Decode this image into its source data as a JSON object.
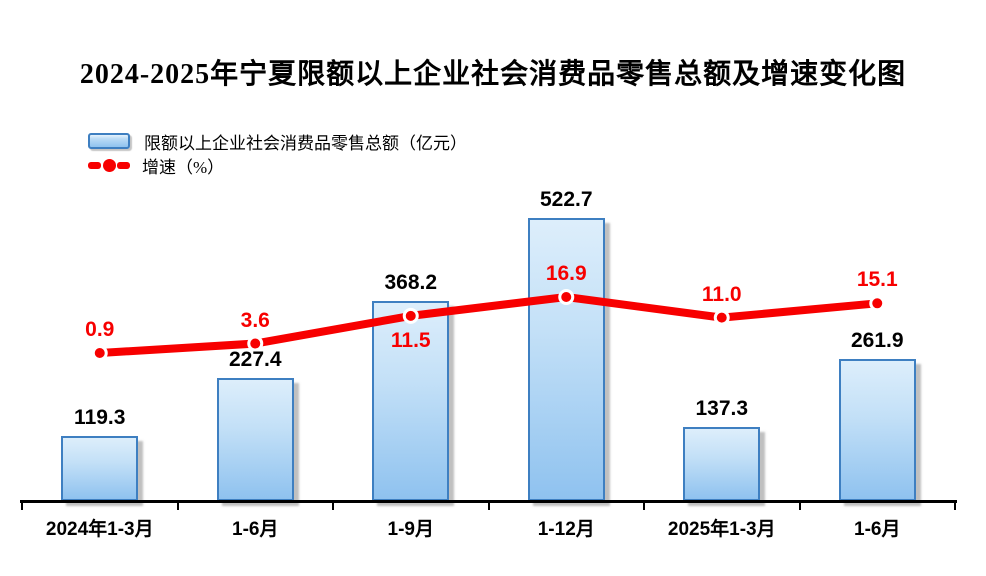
{
  "title": "2024-2025年宁夏限额以上企业社会消费品零售总额及增速变化图",
  "legend": {
    "bar_label": "限额以上企业社会消费品零售总额（亿元）",
    "line_label": "增速（%）"
  },
  "colors": {
    "bar_fill_top": "#ddeefb",
    "bar_fill_bottom": "#8fc2ef",
    "bar_border": "#3e7fc1",
    "line": "#f70000",
    "text": "#000000"
  },
  "chart_data": {
    "type": "bar+line",
    "categories": [
      "2024年1-3月",
      "1-6月",
      "1-9月",
      "1-12月",
      "2025年1-3月",
      "1-6月"
    ],
    "series": [
      {
        "name": "限额以上企业社会消费品零售总额（亿元）",
        "type": "bar",
        "values": [
          119.3,
          227.4,
          368.2,
          522.7,
          137.3,
          261.9
        ],
        "color": "#a9d1f2"
      },
      {
        "name": "增速（%）",
        "type": "line",
        "values": [
          0.9,
          3.6,
          11.5,
          16.9,
          11.0,
          15.1
        ],
        "color": "#f70000",
        "label_positions": [
          "above",
          "above",
          "below",
          "above",
          "above",
          "above"
        ]
      }
    ],
    "title": "2024-2025年宁夏限额以上企业社会消费品零售总额及增速变化图",
    "xlabel": "",
    "ylabel": "",
    "value_labels": true,
    "value_label_decimals": 1,
    "grid": false,
    "y_axis_shown": false,
    "legend_position": "top-left"
  }
}
